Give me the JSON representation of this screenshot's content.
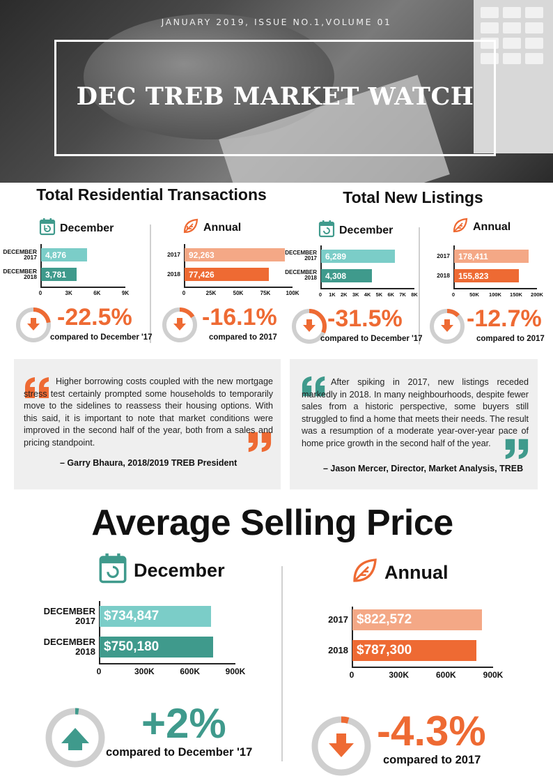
{
  "header": {
    "issue": "JANUARY 2019, ISSUE NO.1,VOLUME 01",
    "title": "DEC TREB MARKET WATCH"
  },
  "colors": {
    "teal": "#3f9a8c",
    "teal_light": "#7bcdc8",
    "orange": "#ee6a33",
    "orange_light": "#f4a886",
    "ring_gray": "#cfcfcf"
  },
  "icons": {
    "december": "calendar-icon",
    "annual": "leaf-icon",
    "decrease": "down-arrow-icon",
    "increase": "up-arrow-icon",
    "open_quote": "open-quote-icon",
    "close_quote": "close-quote-icon"
  },
  "transactions": {
    "title": "Total Residential Transactions",
    "december": {
      "label": "December",
      "pct": "-22.5%",
      "compare": "compared to December '17"
    },
    "annual": {
      "label": "Annual",
      "pct": "-16.1%",
      "compare": "compared to 2017"
    }
  },
  "listings": {
    "title": "Total New Listings",
    "december": {
      "label": "December",
      "pct": "-31.5%",
      "compare": "compared to December '17"
    },
    "annual": {
      "label": "Annual",
      "pct": "-12.7%",
      "compare": "compared to 2017"
    }
  },
  "quotes": [
    {
      "text": "Higher borrowing costs coupled with the new mortgage stress test certainly prompted some households to temporarily move to the sidelines to reassess their housing options. With this said, it is important to note that market conditions were improved in the second half of the year, both from a sales and pricing standpoint.",
      "by": "– Garry Bhaura, 2018/2019 TREB President"
    },
    {
      "text": "After spiking in 2017, new listings receded markedly in 2018. In many neighbourhoods, despite fewer sales from a historic perspective, some buyers still struggled to find a home that meets their needs. The result was a resumption of a moderate year-over-year pace of home price growth in the second half of the year.",
      "by": "– Jason Mercer, Director, Market Analysis, TREB"
    }
  ],
  "price": {
    "title": "Average Selling Price",
    "december": {
      "label": "December",
      "pct": "+2%",
      "compare": "compared to December '17"
    },
    "annual": {
      "label": "Annual",
      "pct": "-4.3%",
      "compare": "compared to 2017"
    }
  },
  "chart_data": [
    {
      "type": "bar",
      "title": "Total Residential Transactions – December",
      "categories": [
        "DECEMBER 2017",
        "DECEMBER 2018"
      ],
      "values": [
        4876,
        3781
      ],
      "labels": [
        "4,876",
        "3,781"
      ],
      "xlim": [
        0,
        9000
      ],
      "ticks": [
        "0",
        "3K",
        "6K",
        "9K"
      ],
      "tick_values": [
        0,
        3000,
        6000,
        9000
      ],
      "colors": [
        "#7bcdc8",
        "#3f9a8c"
      ],
      "change_pct": -22.5
    },
    {
      "type": "bar",
      "title": "Total Residential Transactions – Annual",
      "categories": [
        "2017",
        "2018"
      ],
      "values": [
        92263,
        77426
      ],
      "labels": [
        "92,263",
        "77,426"
      ],
      "xlim": [
        0,
        100000
      ],
      "ticks": [
        "0",
        "25K",
        "50K",
        "75K",
        "100K"
      ],
      "tick_values": [
        0,
        25000,
        50000,
        75000,
        100000
      ],
      "colors": [
        "#f4a886",
        "#ee6a33"
      ],
      "change_pct": -16.1
    },
    {
      "type": "bar",
      "title": "Total New Listings – December",
      "categories": [
        "DECEMBER 2017",
        "DECEMBER 2018"
      ],
      "values": [
        6289,
        4308
      ],
      "labels": [
        "6,289",
        "4,308"
      ],
      "xlim": [
        0,
        8000
      ],
      "ticks": [
        "0",
        "1K",
        "2K",
        "3K",
        "4K",
        "5K",
        "6K",
        "7K",
        "8K"
      ],
      "tick_values": [
        0,
        1000,
        2000,
        3000,
        4000,
        5000,
        6000,
        7000,
        8000
      ],
      "colors": [
        "#7bcdc8",
        "#3f9a8c"
      ],
      "change_pct": -31.5
    },
    {
      "type": "bar",
      "title": "Total New Listings – Annual",
      "categories": [
        "2017",
        "2018"
      ],
      "values": [
        178411,
        155823
      ],
      "labels": [
        "178,411",
        "155,823"
      ],
      "xlim": [
        0,
        200000
      ],
      "ticks": [
        "0",
        "50K",
        "100K",
        "150K",
        "200K"
      ],
      "tick_values": [
        0,
        50000,
        100000,
        150000,
        200000
      ],
      "colors": [
        "#f4a886",
        "#ee6a33"
      ],
      "change_pct": -12.7
    },
    {
      "type": "bar",
      "title": "Average Selling Price – December",
      "categories": [
        "DECEMBER 2017",
        "DECEMBER 2018"
      ],
      "values": [
        734847,
        750180
      ],
      "labels": [
        "$734,847",
        "$750,180"
      ],
      "xlim": [
        0,
        900000
      ],
      "ticks": [
        "0",
        "300K",
        "600K",
        "900K"
      ],
      "tick_values": [
        0,
        300000,
        600000,
        900000
      ],
      "colors": [
        "#7bcdc8",
        "#3f9a8c"
      ],
      "change_pct": 2
    },
    {
      "type": "bar",
      "title": "Average Selling Price – Annual",
      "categories": [
        "2017",
        "2018"
      ],
      "values": [
        822572,
        787300
      ],
      "labels": [
        "$822,572",
        "$787,300"
      ],
      "xlim": [
        0,
        900000
      ],
      "ticks": [
        "0",
        "300K",
        "600K",
        "900K"
      ],
      "tick_values": [
        0,
        300000,
        600000,
        900000
      ],
      "colors": [
        "#f4a886",
        "#ee6a33"
      ],
      "change_pct": -4.3
    }
  ]
}
